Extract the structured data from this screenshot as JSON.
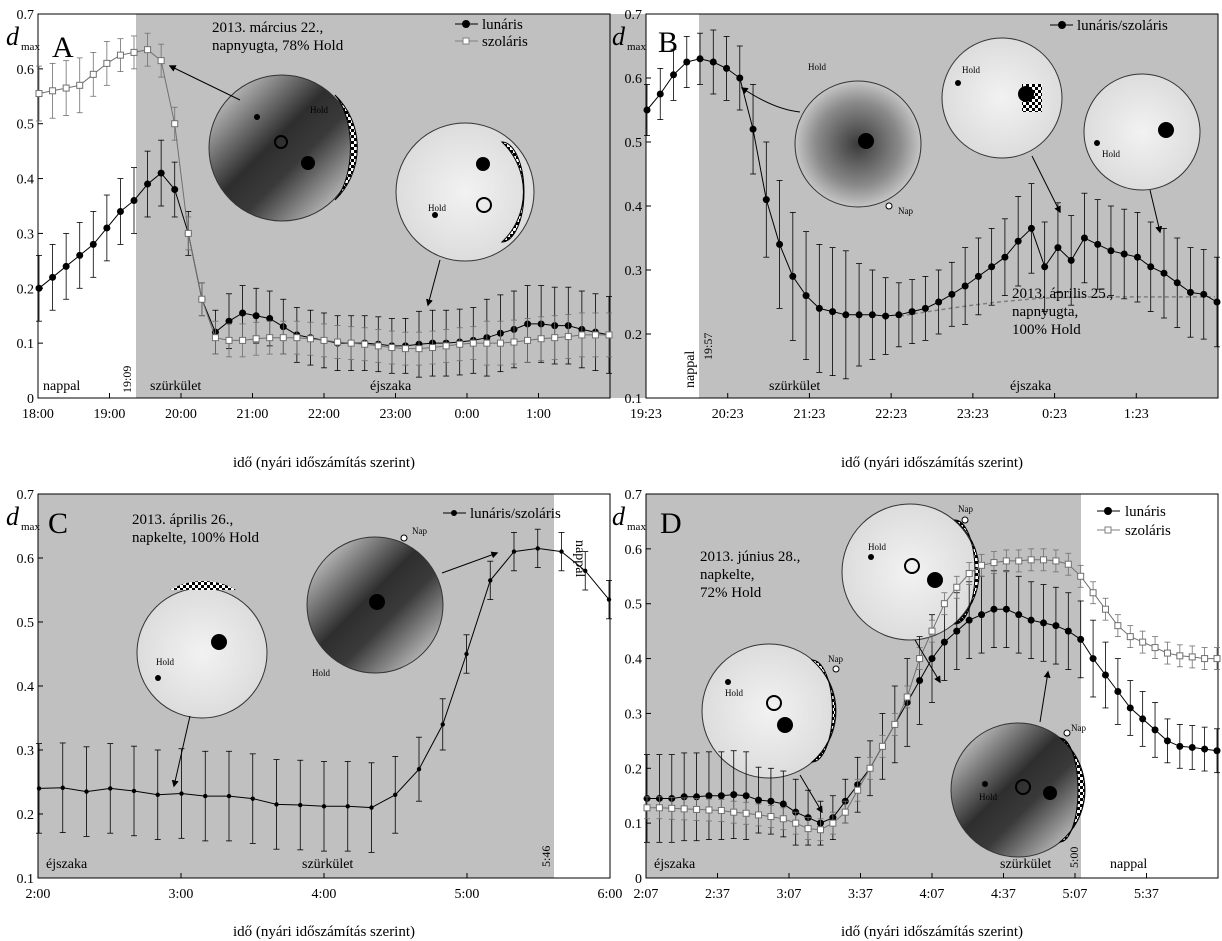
{
  "colors": {
    "night": "#c0c0c0",
    "day": "#ffffff",
    "lunar": "#000000",
    "solar_marker": "#ffffff",
    "gray_line": "#808080"
  },
  "chart_data": [
    {
      "id": "A",
      "type": "line",
      "panel_letter": "A",
      "ylabel": "d",
      "ylabel_sub": "max",
      "xlabel": "idő (nyári időszámítás szerint)",
      "ylim": [
        0,
        0.7
      ],
      "y_ticks": [
        "0",
        "0.1",
        "0.2",
        "0.3",
        "0.4",
        "0.5",
        "0.6",
        "0.7"
      ],
      "x_ticks": [
        "18:00",
        "19:00",
        "20:00",
        "21:00",
        "22:00",
        "23:00",
        "0:00",
        "1:00"
      ],
      "annotation": [
        "2013. március 22.,",
        "napnyugta, 78% Hold"
      ],
      "divider_label": "19:09",
      "zone_labels": [
        "nappal",
        "szürkület",
        "éjszaka"
      ],
      "legend": [
        "lunáris",
        "szoláris"
      ],
      "image_labels": [
        "Hold",
        "Hold"
      ],
      "series": [
        {
          "name": "lunáris",
          "marker": "filled-circle",
          "values": [
            0.2,
            0.22,
            0.24,
            0.26,
            0.28,
            0.31,
            0.34,
            0.36,
            0.39,
            0.41,
            0.38,
            0.3,
            0.18,
            0.12,
            0.14,
            0.155,
            0.15,
            0.145,
            0.13,
            0.115,
            0.11,
            0.105,
            0.1,
            0.1,
            0.1,
            0.098,
            0.095,
            0.095,
            0.098,
            0.1,
            0.1,
            0.102,
            0.105,
            0.11,
            0.118,
            0.125,
            0.135,
            0.135,
            0.132,
            0.132,
            0.125,
            0.12,
            0.115
          ],
          "errors": [
            0.06,
            0.06,
            0.06,
            0.06,
            0.06,
            0.06,
            0.06,
            0.06,
            0.06,
            0.06,
            0.05,
            0.04,
            0.03,
            0.04,
            0.05,
            0.05,
            0.05,
            0.05,
            0.05,
            0.05,
            0.05,
            0.05,
            0.05,
            0.05,
            0.05,
            0.05,
            0.05,
            0.05,
            0.06,
            0.06,
            0.06,
            0.06,
            0.06,
            0.07,
            0.07,
            0.07,
            0.07,
            0.07,
            0.07,
            0.07,
            0.07,
            0.07,
            0.07
          ]
        },
        {
          "name": "szoláris",
          "marker": "open-square",
          "values": [
            0.555,
            0.56,
            0.565,
            0.57,
            0.59,
            0.61,
            0.625,
            0.63,
            0.635,
            0.615,
            0.5,
            0.3,
            0.18,
            0.11,
            0.105,
            0.105,
            0.108,
            0.11,
            0.11,
            0.11,
            0.108,
            0.105,
            0.102,
            0.1,
            0.098,
            0.095,
            0.092,
            0.09,
            0.09,
            0.092,
            0.095,
            0.098,
            0.1,
            0.1,
            0.1,
            0.102,
            0.105,
            0.108,
            0.11,
            0.112,
            0.115,
            0.115,
            0.115
          ],
          "errors": [
            0.05,
            0.05,
            0.05,
            0.05,
            0.04,
            0.04,
            0.03,
            0.03,
            0.03,
            0.03,
            0.03,
            0.03,
            0.03,
            0.03,
            0.03,
            0.03,
            0.03,
            0.03,
            0.03,
            0.03,
            0.03,
            0.03,
            0.03,
            0.03,
            0.03,
            0.03,
            0.03,
            0.03,
            0.03,
            0.03,
            0.03,
            0.03,
            0.03,
            0.04,
            0.04,
            0.04,
            0.04,
            0.04,
            0.04,
            0.04,
            0.04,
            0.04,
            0.04
          ]
        }
      ]
    },
    {
      "id": "B",
      "type": "line",
      "panel_letter": "B",
      "ylabel": "d",
      "ylabel_sub": "max",
      "xlabel": "idő (nyári időszámítás szerint)",
      "ylim": [
        0.1,
        0.7
      ],
      "y_ticks": [
        "0.1",
        "0.2",
        "0.3",
        "0.4",
        "0.5",
        "0.6",
        "0.7"
      ],
      "x_ticks": [
        "19:23",
        "20:23",
        "21:23",
        "22:23",
        "23:23",
        "0:23",
        "1:23"
      ],
      "annotation": [
        "2013. április 25.,",
        "napnyugta,",
        "100% Hold"
      ],
      "divider_label": "19:57",
      "zone_labels": [
        "nappal",
        "szürkület",
        "éjszaka"
      ],
      "legend": [
        "lunáris/szoláris"
      ],
      "image_labels": [
        "Hold",
        "Nap",
        "Hold",
        "Hold"
      ],
      "series": [
        {
          "name": "lunáris/szoláris",
          "marker": "filled-circle",
          "values": [
            0.55,
            0.575,
            0.605,
            0.625,
            0.63,
            0.625,
            0.615,
            0.6,
            0.52,
            0.41,
            0.34,
            0.29,
            0.26,
            0.24,
            0.235,
            0.23,
            0.23,
            0.23,
            0.228,
            0.23,
            0.235,
            0.24,
            0.25,
            0.262,
            0.275,
            0.29,
            0.305,
            0.32,
            0.345,
            0.365,
            0.305,
            0.335,
            0.315,
            0.35,
            0.34,
            0.33,
            0.325,
            0.32,
            0.305,
            0.295,
            0.28,
            0.265,
            0.262,
            0.25
          ],
          "errors": [
            0.04,
            0.04,
            0.04,
            0.04,
            0.04,
            0.05,
            0.05,
            0.05,
            0.07,
            0.09,
            0.1,
            0.1,
            0.1,
            0.1,
            0.1,
            0.1,
            0.08,
            0.07,
            0.06,
            0.05,
            0.05,
            0.05,
            0.05,
            0.05,
            0.06,
            0.06,
            0.06,
            0.06,
            0.07,
            0.07,
            0.07,
            0.07,
            0.07,
            0.07,
            0.07,
            0.07,
            0.07,
            0.07,
            0.07,
            0.07,
            0.07,
            0.07,
            0.07,
            0.07
          ]
        }
      ]
    },
    {
      "id": "C",
      "type": "line",
      "panel_letter": "C",
      "ylabel": "d",
      "ylabel_sub": "max",
      "xlabel": "idő (nyári időszámítás szerint)",
      "ylim": [
        0.1,
        0.7
      ],
      "y_ticks": [
        "0.1",
        "0.2",
        "0.3",
        "0.4",
        "0.5",
        "0.6",
        "0.7"
      ],
      "x_ticks": [
        "2:00",
        "3:00",
        "4:00",
        "5:00",
        "6:00"
      ],
      "annotation": [
        "2013. április 26.,",
        "napkelte, 100% Hold"
      ],
      "divider_label": "5:46",
      "zone_labels": [
        "éjszaka",
        "szürkület",
        "nappal"
      ],
      "legend": [
        "lunáris/szoláris"
      ],
      "image_labels": [
        "Hold",
        "Nap",
        "Hold"
      ],
      "series": [
        {
          "name": "lunáris/szoláris",
          "marker": "small-dot",
          "values": [
            0.24,
            0.241,
            0.235,
            0.24,
            0.236,
            0.23,
            0.232,
            0.228,
            0.228,
            0.224,
            0.215,
            0.214,
            0.212,
            0.212,
            0.21,
            0.23,
            0.27,
            0.34,
            0.45,
            0.565,
            0.61,
            0.615,
            0.61,
            0.58,
            0.535
          ],
          "errors": [
            0.07,
            0.07,
            0.07,
            0.07,
            0.07,
            0.07,
            0.07,
            0.07,
            0.07,
            0.07,
            0.07,
            0.07,
            0.07,
            0.07,
            0.07,
            0.06,
            0.05,
            0.04,
            0.03,
            0.03,
            0.03,
            0.03,
            0.03,
            0.03,
            0.03
          ]
        }
      ]
    },
    {
      "id": "D",
      "type": "line",
      "panel_letter": "D",
      "ylabel": "d",
      "ylabel_sub": "max",
      "xlabel": "idő (nyári időszámítás szerint)",
      "ylim": [
        0,
        0.7
      ],
      "y_ticks": [
        "0",
        "0.1",
        "0.2",
        "0.3",
        "0.4",
        "0.5",
        "0.6",
        "0.7"
      ],
      "x_ticks": [
        "2:07",
        "2:37",
        "3:07",
        "3:37",
        "4:07",
        "4:37",
        "5:07",
        "5:37"
      ],
      "annotation": [
        "2013. június 28.,",
        "napkelte,",
        "72% Hold"
      ],
      "divider_label": "5:00",
      "zone_labels": [
        "éjszaka",
        "szürkület",
        "nappal"
      ],
      "legend": [
        "lunáris",
        "szoláris"
      ],
      "image_labels": [
        "Hold",
        "Nap",
        "Hold",
        "Nap",
        "Hold",
        "Nap"
      ],
      "series": [
        {
          "name": "lunáris",
          "marker": "filled-circle",
          "values": [
            0.145,
            0.145,
            0.145,
            0.148,
            0.148,
            0.15,
            0.15,
            0.152,
            0.15,
            0.142,
            0.14,
            0.135,
            0.12,
            0.11,
            0.1,
            0.11,
            0.14,
            0.17,
            0.2,
            0.24,
            0.28,
            0.32,
            0.36,
            0.4,
            0.43,
            0.45,
            0.47,
            0.48,
            0.49,
            0.49,
            0.48,
            0.47,
            0.465,
            0.46,
            0.45,
            0.435,
            0.4,
            0.37,
            0.34,
            0.31,
            0.29,
            0.27,
            0.25,
            0.24,
            0.238,
            0.235,
            0.232
          ],
          "errors": [
            0.08,
            0.08,
            0.08,
            0.08,
            0.08,
            0.08,
            0.08,
            0.08,
            0.08,
            0.06,
            0.06,
            0.06,
            0.06,
            0.05,
            0.04,
            0.04,
            0.04,
            0.05,
            0.05,
            0.06,
            0.07,
            0.08,
            0.08,
            0.08,
            0.07,
            0.07,
            0.07,
            0.07,
            0.07,
            0.07,
            0.07,
            0.07,
            0.07,
            0.07,
            0.07,
            0.07,
            0.07,
            0.06,
            0.06,
            0.05,
            0.05,
            0.05,
            0.04,
            0.04,
            0.04,
            0.04,
            0.04
          ]
        },
        {
          "name": "szoláris",
          "marker": "open-square",
          "values": [
            0.128,
            0.128,
            0.127,
            0.126,
            0.125,
            0.124,
            0.123,
            0.12,
            0.118,
            0.115,
            0.112,
            0.108,
            0.1,
            0.09,
            0.088,
            0.1,
            0.12,
            0.16,
            0.2,
            0.24,
            0.28,
            0.33,
            0.4,
            0.45,
            0.5,
            0.53,
            0.555,
            0.57,
            0.575,
            0.578,
            0.578,
            0.58,
            0.58,
            0.578,
            0.572,
            0.55,
            0.52,
            0.49,
            0.46,
            0.44,
            0.43,
            0.42,
            0.41,
            0.405,
            0.403,
            0.4,
            0.4
          ],
          "errors": [
            0.02,
            0.02,
            0.02,
            0.02,
            0.02,
            0.02,
            0.02,
            0.02,
            0.02,
            0.02,
            0.02,
            0.02,
            0.02,
            0.02,
            0.02,
            0.02,
            0.02,
            0.02,
            0.02,
            0.02,
            0.02,
            0.02,
            0.02,
            0.02,
            0.02,
            0.02,
            0.02,
            0.02,
            0.02,
            0.02,
            0.02,
            0.02,
            0.02,
            0.02,
            0.02,
            0.02,
            0.02,
            0.02,
            0.02,
            0.02,
            0.02,
            0.02,
            0.02,
            0.02,
            0.02,
            0.02,
            0.02
          ]
        }
      ]
    }
  ]
}
